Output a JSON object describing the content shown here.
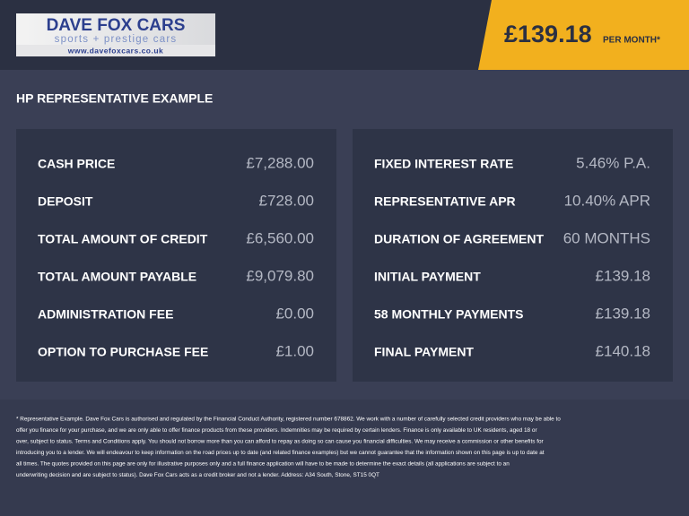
{
  "logo": {
    "title": "DAVE FOX CARS",
    "tagline": "sports + prestige cars",
    "url": "www.davefoxcars.co.uk"
  },
  "price": {
    "amount": "£139.18",
    "period": "PER MONTH*"
  },
  "section_title": "HP REPRESENTATIVE EXAMPLE",
  "left_table": {
    "rows": [
      [
        "CASH PRICE",
        "£7,288.00"
      ],
      [
        "DEPOSIT",
        "£728.00"
      ],
      [
        "TOTAL AMOUNT OF CREDIT",
        "£6,560.00"
      ],
      [
        "TOTAL AMOUNT PAYABLE",
        "£9,079.80"
      ],
      [
        "ADMINISTRATION FEE",
        "£0.00"
      ],
      [
        "OPTION TO PURCHASE FEE",
        "£1.00"
      ]
    ]
  },
  "right_table": {
    "rows": [
      [
        "FIXED INTEREST RATE",
        "5.46% P.A."
      ],
      [
        "REPRESENTATIVE APR",
        "10.40% APR"
      ],
      [
        "DURATION OF AGREEMENT",
        "60 MONTHS"
      ],
      [
        "INITIAL PAYMENT",
        "£139.18"
      ],
      [
        "58 MONTHLY PAYMENTS",
        "£139.18"
      ],
      [
        "FINAL PAYMENT",
        "£140.18"
      ]
    ]
  },
  "disclaimer": {
    "lines": [
      "* Representative Example. Dave Fox Cars is authorised and regulated by the Financial Conduct Authority, registered number 678862. We work with a number of carefully selected credit providers who may be able to",
      "offer you finance for your purchase, and we are only able to offer finance products from these providers. Indemnities may be required by certain lenders. Finance is only available to UK residents, aged 18 or",
      "over, subject to status. Terms and Conditions apply. You should not borrow more than you can afford to repay as doing so can cause you financial difficulties. We may receive a commission or other benefits for",
      "introducing you to a lender. We will endeavour to keep information on the road prices up to date (and related finance examples) but we cannot guarantee that the information shown on this page is up to date at",
      "all times. The quotes provided on this page are only for illustrative purposes only and a full finance application will have to be made to determine the exact details (all applications are subject to an",
      "underwriting decision and are subject to status). Dave Fox Cars acts as a credit broker and not a lender. Address: A34 South, Stone, ST15 0QT"
    ]
  }
}
